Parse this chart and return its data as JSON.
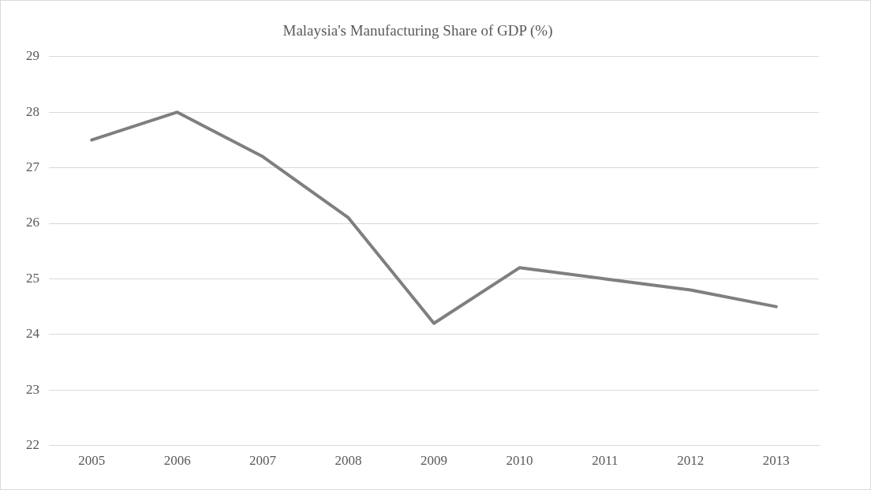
{
  "chart_data": {
    "type": "line",
    "title": "Malaysia's Manufacturing Share of GDP (%)",
    "categories": [
      "2005",
      "2006",
      "2007",
      "2008",
      "2009",
      "2010",
      "2011",
      "2012",
      "2013"
    ],
    "series": [
      {
        "color": "#7f7f7f",
        "values": [
          27.5,
          28.0,
          27.2,
          26.1,
          24.2,
          25.2,
          25.0,
          24.8,
          24.5
        ]
      }
    ],
    "ylim": [
      22,
      29
    ],
    "yticks": [
      22,
      23,
      24,
      25,
      26,
      27,
      28,
      29
    ],
    "grid": "y",
    "legend": false,
    "marker": "none",
    "line_style": "solid"
  }
}
